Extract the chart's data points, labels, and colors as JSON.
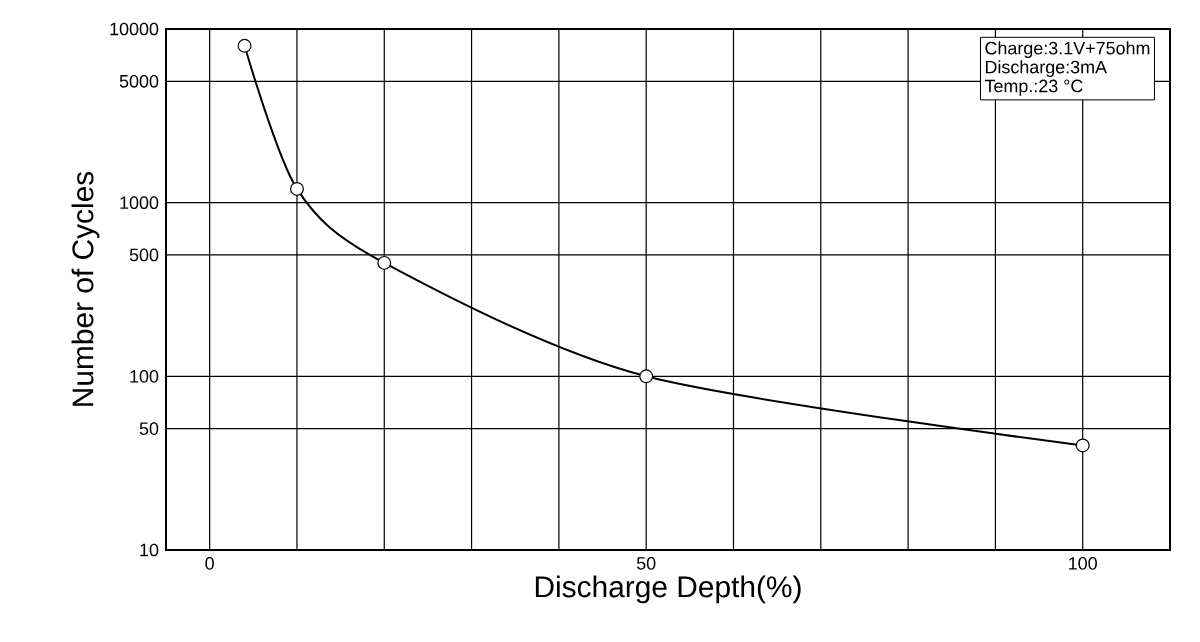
{
  "chart_data": {
    "type": "line",
    "xlabel": "Discharge Depth(%)",
    "ylabel": "Number of Cycles",
    "x": [
      4,
      10,
      20,
      50,
      100
    ],
    "series": [
      {
        "color": "#000000",
        "values": [
          8000,
          1200,
          450,
          100,
          40
        ]
      }
    ],
    "log": "y",
    "grid": true,
    "marker": "circle",
    "line_style": "solid",
    "xlim": [
      -5,
      110
    ],
    "ylim": [
      10,
      10000
    ],
    "xticks": [
      0,
      {
        "value": 10,
        "label": null
      },
      {
        "value": 20,
        "label": null
      },
      {
        "value": 30,
        "label": null
      },
      {
        "value": 40,
        "label": null
      },
      50,
      {
        "value": 60,
        "label": null
      },
      {
        "value": 70,
        "label": null
      },
      {
        "value": 80,
        "label": null
      },
      {
        "value": 90,
        "label": null
      },
      100
    ],
    "yticks": [
      10,
      50,
      100,
      500,
      1000,
      5000,
      10000
    ],
    "annotations": [
      "Charge:3.1V+75ohm",
      "Discharge:3mA",
      "Temp.:23 °C"
    ]
  }
}
